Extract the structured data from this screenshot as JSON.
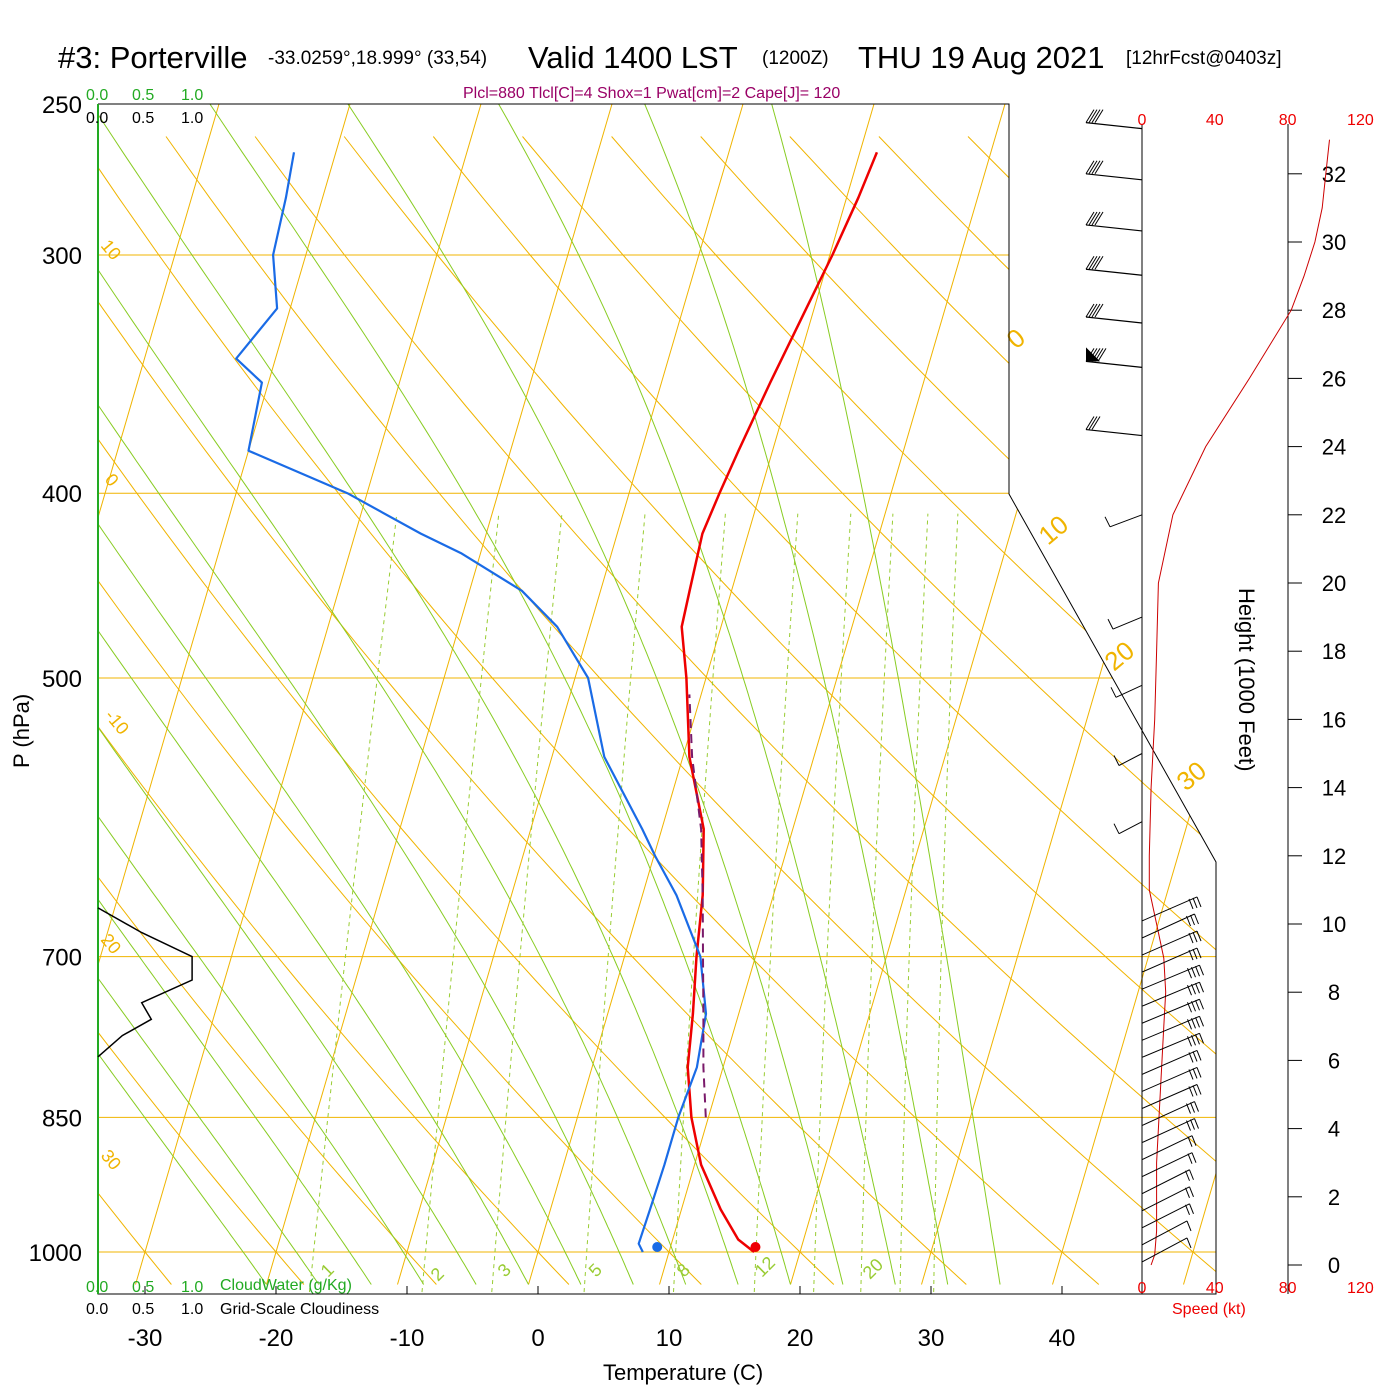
{
  "header": {
    "station": "#3: Porterville",
    "coords": "-33.0259°,18.999° (33,54)",
    "valid": "Valid 1400 LST",
    "utc": "(1200Z)",
    "date": "THU 19 Aug 2021",
    "forecast": "[12hrFcst@0403z]",
    "indices": "Plcl=880 Tlcl[C]=4 Shox=1 Pwat[cm]=2 Cape[J]= 120"
  },
  "colors": {
    "temperature": "#ee0000",
    "dewpoint": "#1a6be6",
    "parcel": "#7a1a6a",
    "isobar_isotherm": "#f0b400",
    "moist_adiabat": "#88cc22",
    "mixing_ratio": "#99cc33",
    "cloudwater": "#22aa22",
    "cloudiness": "#000000",
    "speed": "#cc0000"
  },
  "chart_data": {
    "type": "line",
    "xlabel": "Temperature (C)",
    "ylabel": "P (hPa)",
    "y2label": "Height (1000 Feet)",
    "x_ticks": [
      "-30",
      "-20",
      "-10",
      "0",
      "10",
      "20",
      "30",
      "40"
    ],
    "pressure_ticks": [
      "250",
      "300",
      "400",
      "500",
      "700",
      "850",
      "1000"
    ],
    "height_ticks": [
      "0",
      "2",
      "4",
      "6",
      "8",
      "10",
      "12",
      "14",
      "16",
      "18",
      "20",
      "22",
      "24",
      "26",
      "28",
      "30",
      "32"
    ],
    "dry_adiabat_labels": [
      "10",
      "0",
      "-10",
      "20",
      "30"
    ],
    "right_adiabat_labels": [
      "0",
      "10",
      "20",
      "30"
    ],
    "mixing_ratio_labels": [
      "1",
      "2",
      "3",
      "5",
      "8",
      "12",
      "20"
    ],
    "temperature_series": {
      "pressure": [
        1000,
        985,
        950,
        900,
        850,
        800,
        750,
        700,
        650,
        600,
        550,
        500,
        470,
        450,
        420,
        400,
        380,
        350,
        320,
        300,
        280,
        265
      ],
      "values": [
        16.5,
        15,
        13,
        10.5,
        8.7,
        7.3,
        6.5,
        5.5,
        4.6,
        3.2,
        0.5,
        -1.5,
        -3,
        -3.2,
        -3.5,
        -3.1,
        -2.6,
        -1.7,
        -0.6,
        0.2,
        0.9,
        1.3
      ]
    },
    "dewpoint_series": {
      "pressure": [
        1000,
        990,
        950,
        900,
        850,
        800,
        750,
        700,
        650,
        620,
        600,
        550,
        500,
        470,
        450,
        430,
        420,
        400,
        380,
        350,
        340,
        320,
        300,
        280,
        265
      ],
      "values": [
        8,
        7.5,
        7.6,
        7.7,
        7.7,
        8,
        7.5,
        5.8,
        2.6,
        0.1,
        -1.5,
        -6,
        -9,
        -12.5,
        -16,
        -21.5,
        -25,
        -31.5,
        -40,
        -40.5,
        -43,
        -41,
        -42.5,
        -42.8,
        -43.2
      ]
    },
    "parcel_series": {
      "pressure": [
        850,
        800,
        750,
        700,
        650,
        600,
        550,
        510
      ],
      "values": [
        9.8,
        8.5,
        7.3,
        6,
        4.6,
        3,
        0.7,
        -0.9
      ]
    },
    "surface_markers": {
      "temperature": 16.6,
      "dewpoint": 9.1
    },
    "cloudwater": {
      "label": "CloudWater (g/Kg)",
      "ticks": [
        "0.0",
        "0.5",
        "1.0"
      ]
    },
    "cloudiness": {
      "label": "Grid-Scale Cloudiness",
      "ticks": [
        "0.0",
        "0.5",
        "1.0"
      ],
      "pressure": [
        660,
        680,
        700,
        720,
        740,
        755,
        770,
        790
      ],
      "values": [
        0,
        0.45,
        0.97,
        0.97,
        0.45,
        0.55,
        0.25,
        0
      ]
    },
    "wind_speed": {
      "xlabel": "Speed (kt)",
      "ticks": [
        "0",
        "40",
        "80",
        "120"
      ],
      "height_kft": [
        0,
        0.3,
        1,
        2,
        3,
        4,
        5,
        6,
        7,
        8,
        9,
        10,
        11,
        12,
        14,
        16,
        18,
        20,
        22,
        24,
        26,
        28,
        29,
        30,
        31,
        32,
        33
      ],
      "values": [
        5,
        7,
        8,
        8,
        8,
        9,
        10,
        11,
        12,
        13,
        12,
        8,
        4,
        4,
        5,
        7,
        8,
        9,
        17,
        35,
        59,
        82,
        89,
        95,
        99,
        101,
        103
      ]
    },
    "wind_barbs": {
      "height_kft": [
        0.5,
        1,
        1.5,
        2,
        2.5,
        3,
        3.5,
        4,
        4.5,
        5,
        5.5,
        6,
        6.5,
        7,
        7.5,
        8,
        8.5,
        9,
        9.5,
        10,
        10.5,
        13,
        15,
        17,
        19,
        22,
        24.5,
        26.5,
        27.8,
        29.2,
        30.5,
        32,
        33.5
      ],
      "speed_kt": [
        10,
        10,
        15,
        15,
        15,
        20,
        20,
        25,
        25,
        30,
        30,
        30,
        35,
        35,
        35,
        35,
        35,
        30,
        30,
        25,
        30,
        5,
        5,
        10,
        15,
        20,
        25,
        45,
        35,
        35,
        35,
        35,
        35
      ]
    }
  }
}
